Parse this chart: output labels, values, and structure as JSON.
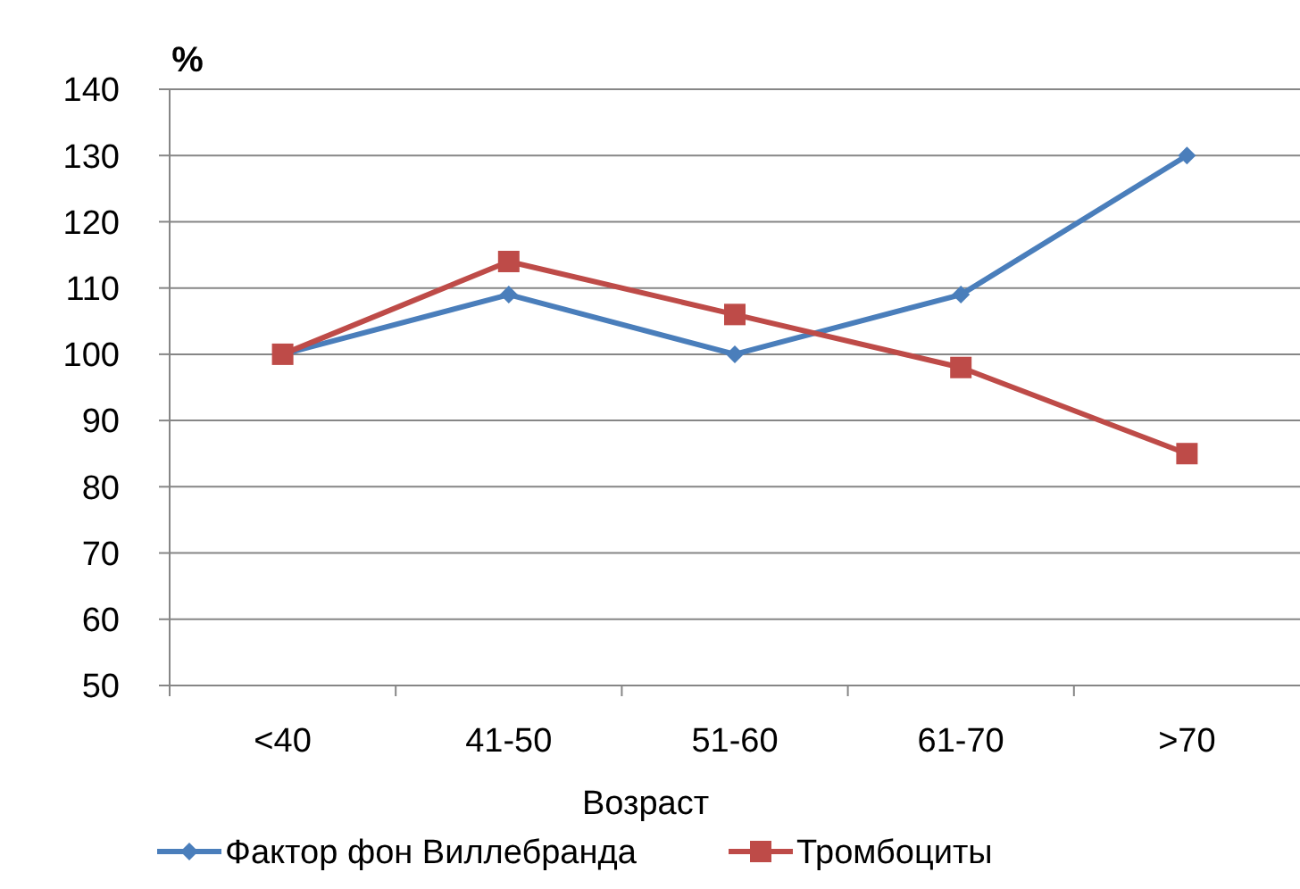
{
  "chart_data": {
    "type": "line",
    "ylabel": "%",
    "xlabel": "Возраст",
    "categories": [
      "<40",
      "41-50",
      "51-60",
      "61-70",
      ">70"
    ],
    "series": [
      {
        "name": "Фактор фон Виллебранда",
        "color": "#4a7ebb",
        "values": [
          100,
          109,
          100,
          109,
          130
        ],
        "marker": "diamond"
      },
      {
        "name": "Тромбоциты",
        "color": "#be4b48",
        "values": [
          100,
          114,
          106,
          98,
          85
        ],
        "marker": "square"
      }
    ],
    "ylim": [
      50,
      140
    ],
    "yticks": [
      50,
      60,
      70,
      80,
      90,
      100,
      110,
      120,
      130,
      140
    ],
    "grid": "y",
    "legend": "bottom"
  }
}
